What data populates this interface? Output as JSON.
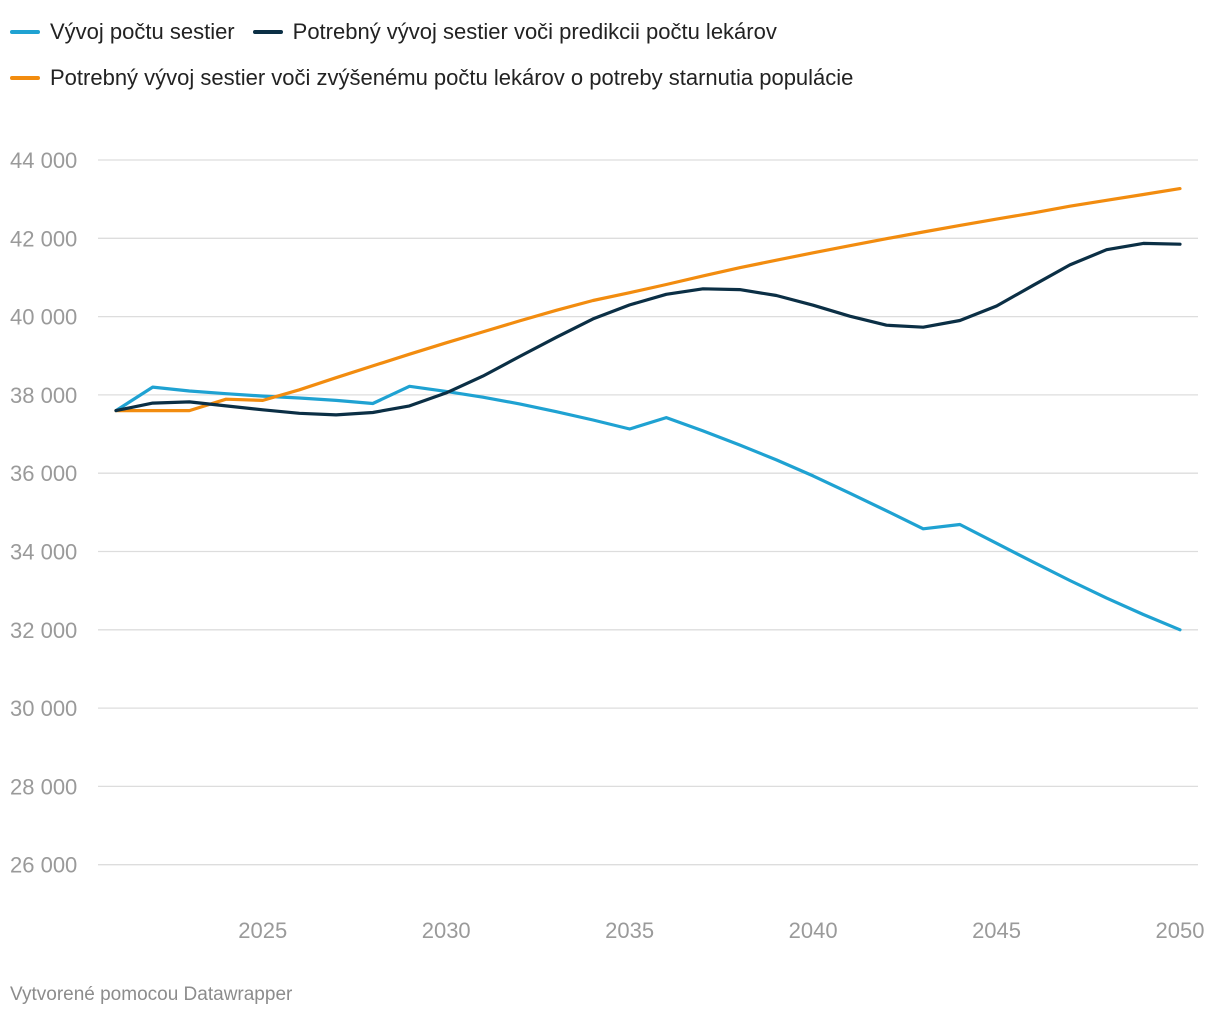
{
  "legend": [
    {
      "label": "Vývoj počtu sestier",
      "color": "#1fa2d2"
    },
    {
      "label": "Potrebný vývoj sestier voči predikcii počtu lekárov",
      "color": "#0b2f45"
    },
    {
      "label": "Potrebný vývoj sestier voči zvýšenému počtu lekárov o potreby starnutia populácie",
      "color": "#f28c0f"
    }
  ],
  "footer": "Vytvorené pomocou Datawrapper",
  "chart_data": {
    "type": "line",
    "title": "",
    "xlabel": "",
    "ylabel": "",
    "x": [
      2021,
      2022,
      2023,
      2024,
      2025,
      2026,
      2027,
      2028,
      2029,
      2030,
      2031,
      2032,
      2033,
      2034,
      2035,
      2036,
      2037,
      2038,
      2039,
      2040,
      2041,
      2042,
      2043,
      2044,
      2045,
      2046,
      2047,
      2048,
      2049,
      2050
    ],
    "xlim": [
      2021,
      2050
    ],
    "ylim": [
      25000,
      44000
    ],
    "y_ticks": [
      26000,
      28000,
      30000,
      32000,
      34000,
      36000,
      38000,
      40000,
      42000,
      44000
    ],
    "y_tick_labels": [
      "26 000",
      "28 000",
      "30 000",
      "32 000",
      "34 000",
      "36 000",
      "38 000",
      "40 000",
      "42 000",
      "44 000"
    ],
    "x_ticks": [
      2025,
      2030,
      2035,
      2040,
      2045,
      2050
    ],
    "x_tick_labels": [
      "2025",
      "2030",
      "2035",
      "2040",
      "2045",
      "2050"
    ],
    "grid": true,
    "series": [
      {
        "name": "Vývoj počtu sestier",
        "color": "#1fa2d2",
        "values": [
          37600,
          38200,
          38100,
          38030,
          37970,
          37920,
          37860,
          37780,
          38220,
          38090,
          37940,
          37770,
          37570,
          37360,
          37130,
          37420,
          37080,
          36720,
          36340,
          35930,
          35490,
          35040,
          34580,
          34690,
          34210,
          33730,
          33260,
          32810,
          32390,
          32000
        ]
      },
      {
        "name": "Potrebný vývoj sestier voči predikcii počtu lekárov",
        "color": "#0b2f45",
        "values": [
          37600,
          37790,
          37820,
          37720,
          37620,
          37530,
          37490,
          37550,
          37720,
          38050,
          38480,
          38980,
          39470,
          39940,
          40300,
          40570,
          40710,
          40690,
          40540,
          40290,
          40010,
          39780,
          39730,
          39900,
          40270,
          40800,
          41320,
          41710,
          41870,
          41850
        ]
      },
      {
        "name": "Potrebný vývoj sestier voči zvýšenému počtu lekárov o potreby starnutia populácie",
        "color": "#f28c0f",
        "values": [
          37600,
          37600,
          37600,
          37890,
          37860,
          38130,
          38440,
          38740,
          39040,
          39330,
          39610,
          39890,
          40160,
          40410,
          40610,
          40820,
          41040,
          41250,
          41440,
          41630,
          41810,
          41990,
          42160,
          42330,
          42490,
          42650,
          42820,
          42970,
          43120,
          43270
        ]
      }
    ]
  }
}
